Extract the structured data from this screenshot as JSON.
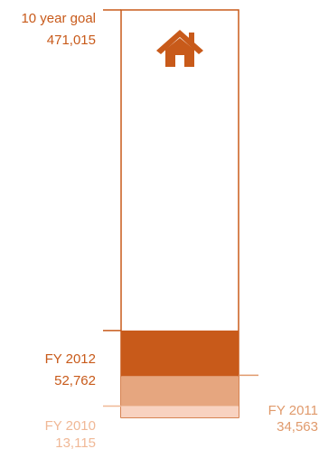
{
  "chart_data": {
    "type": "bar",
    "title": "",
    "goal": {
      "label": "10 year goal",
      "value_label": "471,015",
      "value": 471015
    },
    "icon": "house-icon",
    "series": [
      {
        "name": "FY 2010",
        "value_label": "13,115",
        "value": 13115,
        "color": "#f8d2c0",
        "label_color": "#f0b896"
      },
      {
        "name": "FY 2011",
        "value_label": "34,563",
        "value": 34563,
        "color": "#e6a67f",
        "label_color": "#e09a6c"
      },
      {
        "name": "FY 2012",
        "value_label": "52,762",
        "value": 52762,
        "color": "#c85a1a",
        "label_color": "#c85a1a"
      }
    ],
    "outline_color": "#c85a1a",
    "text_color": "#c85a1a",
    "ylim": [
      0,
      471015
    ]
  }
}
